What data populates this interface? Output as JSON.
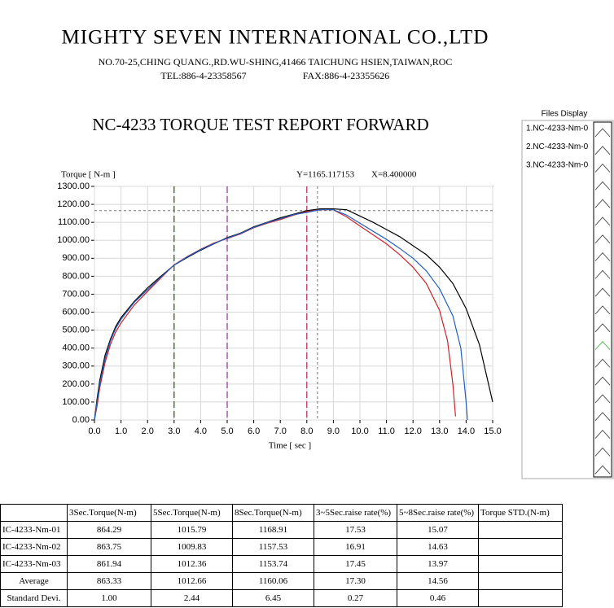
{
  "header": {
    "company": "MIGHTY SEVEN INTERNATIONAL CO.,LTD",
    "address": "NO.70-25,CHING QUANG.,RD.WU-SHING,41466 TAICHUNG HSIEN,TAIWAN,ROC",
    "tel": "TEL:886-4-23358567",
    "fax": "FAX:886-4-23355626"
  },
  "chart_data": {
    "type": "line",
    "title": "NC-4233 TORQUE TEST REPORT FORWARD",
    "y_label": "Torque [ N-m  ]",
    "x_label": "Time [ sec ]",
    "legend_title": "Files Display",
    "cursor": {
      "x": {
        "value": 8.4,
        "label": "X=8.400000"
      },
      "y": {
        "value": 1165.117153,
        "label": "Y=1165.117153"
      }
    },
    "markers": [
      {
        "x": 3,
        "color": "#3d5a2c"
      },
      {
        "x": 5,
        "color": "#9b3aa3"
      },
      {
        "x": 8,
        "color": "#c2305c"
      }
    ],
    "xlim": [
      0,
      15
    ],
    "ylim": [
      0,
      1300
    ],
    "xticks": [
      {
        "value": 0,
        "label": "0.0"
      },
      {
        "value": 1,
        "label": "1.0"
      },
      {
        "value": 2,
        "label": "2.0"
      },
      {
        "value": 3,
        "label": "3.0"
      },
      {
        "value": 4,
        "label": "4.0"
      },
      {
        "value": 5,
        "label": "5.0"
      },
      {
        "value": 6,
        "label": "6.0"
      },
      {
        "value": 7,
        "label": "7.0"
      },
      {
        "value": 8,
        "label": "8.0"
      },
      {
        "value": 9,
        "label": "9.0"
      },
      {
        "value": 10,
        "label": "10.0"
      },
      {
        "value": 11,
        "label": "11.0"
      },
      {
        "value": 12,
        "label": "12.0"
      },
      {
        "value": 13,
        "label": "13.0"
      },
      {
        "value": 14,
        "label": "14.0"
      },
      {
        "value": 15,
        "label": "15.0"
      }
    ],
    "yticks": [
      {
        "value": 0,
        "label": "0.00"
      },
      {
        "value": 100,
        "label": "100.00"
      },
      {
        "value": 200,
        "label": "200.00"
      },
      {
        "value": 300,
        "label": "300.00"
      },
      {
        "value": 400,
        "label": "400.00"
      },
      {
        "value": 500,
        "label": "500.00"
      },
      {
        "value": 600,
        "label": "600.00"
      },
      {
        "value": 700,
        "label": "700.00"
      },
      {
        "value": 800,
        "label": "800.00"
      },
      {
        "value": 900,
        "label": "900.00"
      },
      {
        "value": 1000,
        "label": "1000.00"
      },
      {
        "value": 1100,
        "label": "1100.00"
      },
      {
        "value": 1200,
        "label": "1200.00"
      },
      {
        "value": 1300,
        "label": "1300.00"
      }
    ],
    "grid": true,
    "series": [
      {
        "name": "1.NC-4233-Nm-0",
        "color": "#000000",
        "x": [
          0,
          0.1,
          0.2,
          0.4,
          0.6,
          0.8,
          1,
          1.5,
          2,
          2.5,
          3,
          3.5,
          4,
          4.5,
          5,
          5.5,
          6,
          6.5,
          7,
          7.5,
          8,
          8.5,
          9,
          9.5,
          10,
          10.5,
          11,
          11.5,
          12,
          12.5,
          13,
          13.5,
          14,
          14.5,
          15
        ],
        "values": [
          0,
          120,
          220,
          360,
          450,
          520,
          570,
          660,
          735,
          800,
          862,
          905,
          945,
          980,
          1015,
          1040,
          1075,
          1100,
          1125,
          1145,
          1165,
          1175,
          1175,
          1170,
          1135,
          1100,
          1060,
          1020,
          970,
          920,
          850,
          760,
          620,
          420,
          100
        ]
      },
      {
        "name": "2.NC-4233-Nm-0",
        "color": "#d0202a",
        "x": [
          0,
          0.1,
          0.2,
          0.4,
          0.6,
          0.8,
          1,
          1.5,
          2,
          2.5,
          3,
          3.5,
          4,
          4.5,
          5,
          5.5,
          6,
          6.5,
          7,
          7.5,
          8,
          8.5,
          9,
          9.5,
          10,
          10.5,
          11,
          11.5,
          12,
          12.5,
          13,
          13.3,
          13.5,
          13.6
        ],
        "values": [
          0,
          80,
          180,
          320,
          420,
          490,
          540,
          640,
          715,
          790,
          864,
          910,
          950,
          985,
          1010,
          1035,
          1070,
          1095,
          1115,
          1140,
          1160,
          1170,
          1170,
          1130,
          1080,
          1030,
          980,
          920,
          850,
          760,
          610,
          440,
          200,
          20
        ]
      },
      {
        "name": "3.NC-4233-Nm-0",
        "color": "#1f5fbf",
        "x": [
          0,
          0.1,
          0.2,
          0.4,
          0.6,
          0.8,
          1,
          1.5,
          2,
          2.5,
          3,
          3.5,
          4,
          4.5,
          5,
          5.5,
          6,
          6.5,
          7,
          7.5,
          8,
          8.5,
          9,
          9.5,
          10,
          10.5,
          11,
          11.5,
          12,
          12.5,
          13,
          13.5,
          13.8,
          14,
          14.05
        ],
        "values": [
          0,
          100,
          200,
          340,
          440,
          510,
          560,
          655,
          725,
          795,
          862,
          908,
          948,
          982,
          1012,
          1038,
          1072,
          1098,
          1120,
          1143,
          1155,
          1170,
          1170,
          1140,
          1095,
          1050,
          1005,
          955,
          900,
          830,
          730,
          580,
          400,
          100,
          0
        ]
      }
    ]
  },
  "table": {
    "header": [
      "3Sec.Torque(N-m)",
      "5Sec.Torque(N-m)",
      "8Sec.Torque(N-m)",
      "3~5Sec.raise rate(%)",
      "5~8Sec.raise rate(%)",
      "Torque STD.(N-m)"
    ],
    "rows": [
      [
        "IC-4233-Nm-01",
        "864.29",
        "1015.79",
        "1168.91",
        "17.53",
        "15.07"
      ],
      [
        "IC-4233-Nm-02",
        "863.75",
        "1009.83",
        "1157.53",
        "16.91",
        "14.63"
      ],
      [
        "IC-4233-Nm-03",
        "861.94",
        "1012.36",
        "1153.74",
        "17.45",
        "13.97"
      ],
      [
        "Average",
        "863.33",
        "1012.66",
        "1160.06",
        "17.30",
        "14.56"
      ],
      [
        "Standard Devi.",
        "1.00",
        "2.44",
        "6.45",
        "0.27",
        "0.46"
      ]
    ]
  }
}
